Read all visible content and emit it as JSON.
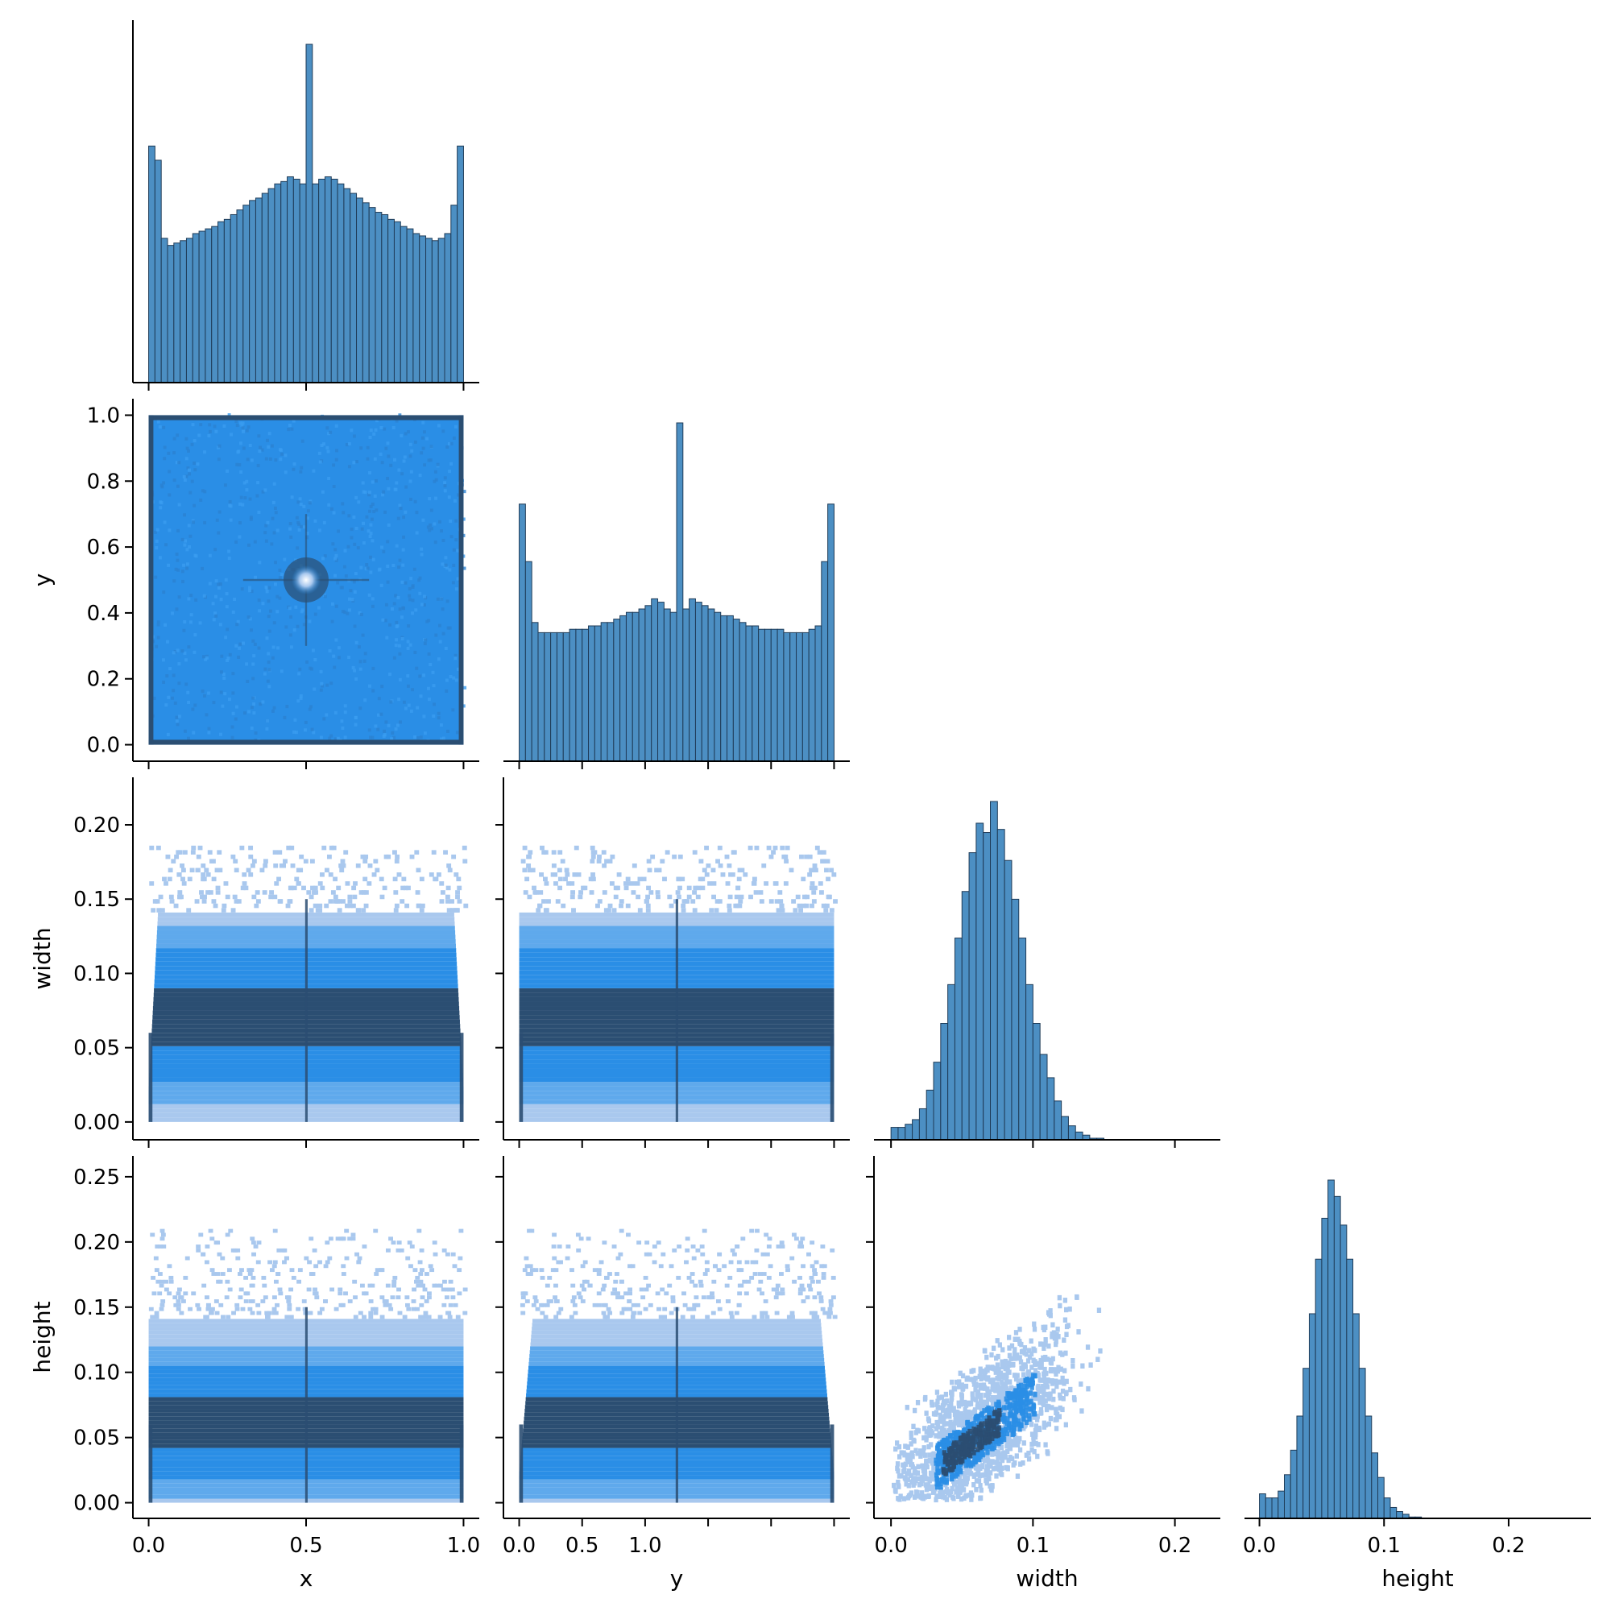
{
  "chart_data": {
    "type": "pairplot",
    "layout": "corner",
    "variables": [
      "x",
      "y",
      "width",
      "height"
    ],
    "colors": {
      "hist_fill": "#4c8fc3",
      "hist_edge": "#1f3b57",
      "density_low": "#a9c8ee",
      "density_mid": "#2a8ee6",
      "density_high": "#2b4e72",
      "axis": "#000000"
    },
    "axes": {
      "x": {
        "label": "x",
        "range": [
          -0.05,
          1.05
        ],
        "ticks": [
          0.0,
          0.5,
          1.0
        ],
        "tick_labels": [
          "0.0",
          "0.5",
          "1.0"
        ]
      },
      "y": {
        "label": "y",
        "range": [
          -0.05,
          1.05
        ],
        "ticks": [
          0.0,
          0.2,
          0.4,
          0.6,
          0.8,
          1.0
        ],
        "tick_labels": [
          "0.0",
          "0.2",
          "0.4",
          "0.6",
          "0.8",
          "1.0"
        ],
        "x_tick_labels": [
          "0.0",
          "0.5",
          "1.0"
        ]
      },
      "width": {
        "label": "width",
        "range": [
          -0.012,
          0.232
        ],
        "ticks": [
          0.0,
          0.05,
          0.1,
          0.15,
          0.2
        ],
        "tick_labels": [
          "0.00",
          "0.05",
          "0.10",
          "0.15",
          "0.20"
        ],
        "x_ticks": [
          0.0,
          0.1,
          0.2
        ],
        "x_tick_labels": [
          "0.0",
          "0.1",
          "0.2"
        ]
      },
      "height": {
        "label": "height",
        "range": [
          -0.012,
          0.266
        ],
        "ticks": [
          0.0,
          0.05,
          0.1,
          0.15,
          0.2,
          0.25
        ],
        "tick_labels": [
          "0.00",
          "0.05",
          "0.10",
          "0.15",
          "0.20",
          "0.25"
        ],
        "x_ticks": [
          0.0,
          0.1,
          0.2
        ],
        "x_tick_labels": [
          "0.0",
          "0.1",
          "0.2"
        ]
      }
    },
    "histograms": {
      "x": {
        "bin_range": [
          0.0,
          1.0
        ],
        "counts": [
          100,
          94,
          61,
          58,
          59,
          60,
          61,
          63,
          64,
          65,
          66,
          68,
          69,
          71,
          73,
          75,
          77,
          78,
          80,
          82,
          84,
          85,
          87,
          86,
          84,
          143,
          84,
          86,
          87,
          86,
          84,
          82,
          80,
          78,
          76,
          74,
          72,
          71,
          69,
          68,
          66,
          65,
          63,
          62,
          61,
          60,
          61,
          63,
          75,
          100
        ]
      },
      "y": {
        "bin_range": [
          0.0,
          1.0
        ],
        "counts": [
          76,
          59,
          41,
          38,
          38,
          38,
          38,
          38,
          39,
          39,
          39,
          40,
          40,
          41,
          41,
          42,
          43,
          44,
          44,
          45,
          46,
          48,
          47,
          45,
          44,
          100,
          45,
          48,
          47,
          46,
          45,
          44,
          43,
          43,
          42,
          41,
          40,
          40,
          39,
          39,
          39,
          39,
          38,
          38,
          38,
          38,
          39,
          40,
          59,
          76
        ]
      },
      "width": {
        "bin_range": [
          0.0,
          0.22
        ],
        "counts": [
          8,
          8,
          10,
          13,
          20,
          32,
          50,
          75,
          100,
          130,
          160,
          185,
          204,
          198,
          218,
          200,
          180,
          155,
          130,
          100,
          75,
          55,
          40,
          25,
          15,
          9,
          5,
          3,
          1,
          1,
          0,
          0,
          0,
          0,
          0,
          0,
          0,
          0,
          0,
          0,
          0,
          0,
          0,
          0
        ]
      },
      "height": {
        "bin_range": [
          0.0,
          0.26
        ],
        "counts": [
          18,
          15,
          15,
          20,
          32,
          50,
          75,
          110,
          150,
          190,
          220,
          248,
          236,
          215,
          190,
          150,
          110,
          75,
          48,
          30,
          15,
          8,
          5,
          3,
          1,
          1,
          0,
          0,
          0,
          0,
          0,
          0,
          0,
          0,
          0,
          0,
          0,
          0,
          0,
          0,
          0,
          0,
          0,
          0,
          0,
          0,
          0,
          0,
          0,
          0,
          0,
          0
        ]
      }
    },
    "density_panels": [
      {
        "x_var": "x",
        "y_var": "y",
        "description_points": [
          [
            0.5,
            0.5
          ]
        ]
      },
      {
        "x_var": "x",
        "y_var": "width"
      },
      {
        "x_var": "y",
        "y_var": "width"
      },
      {
        "x_var": "x",
        "y_var": "height"
      },
      {
        "x_var": "y",
        "y_var": "height"
      },
      {
        "x_var": "width",
        "y_var": "height"
      }
    ]
  }
}
